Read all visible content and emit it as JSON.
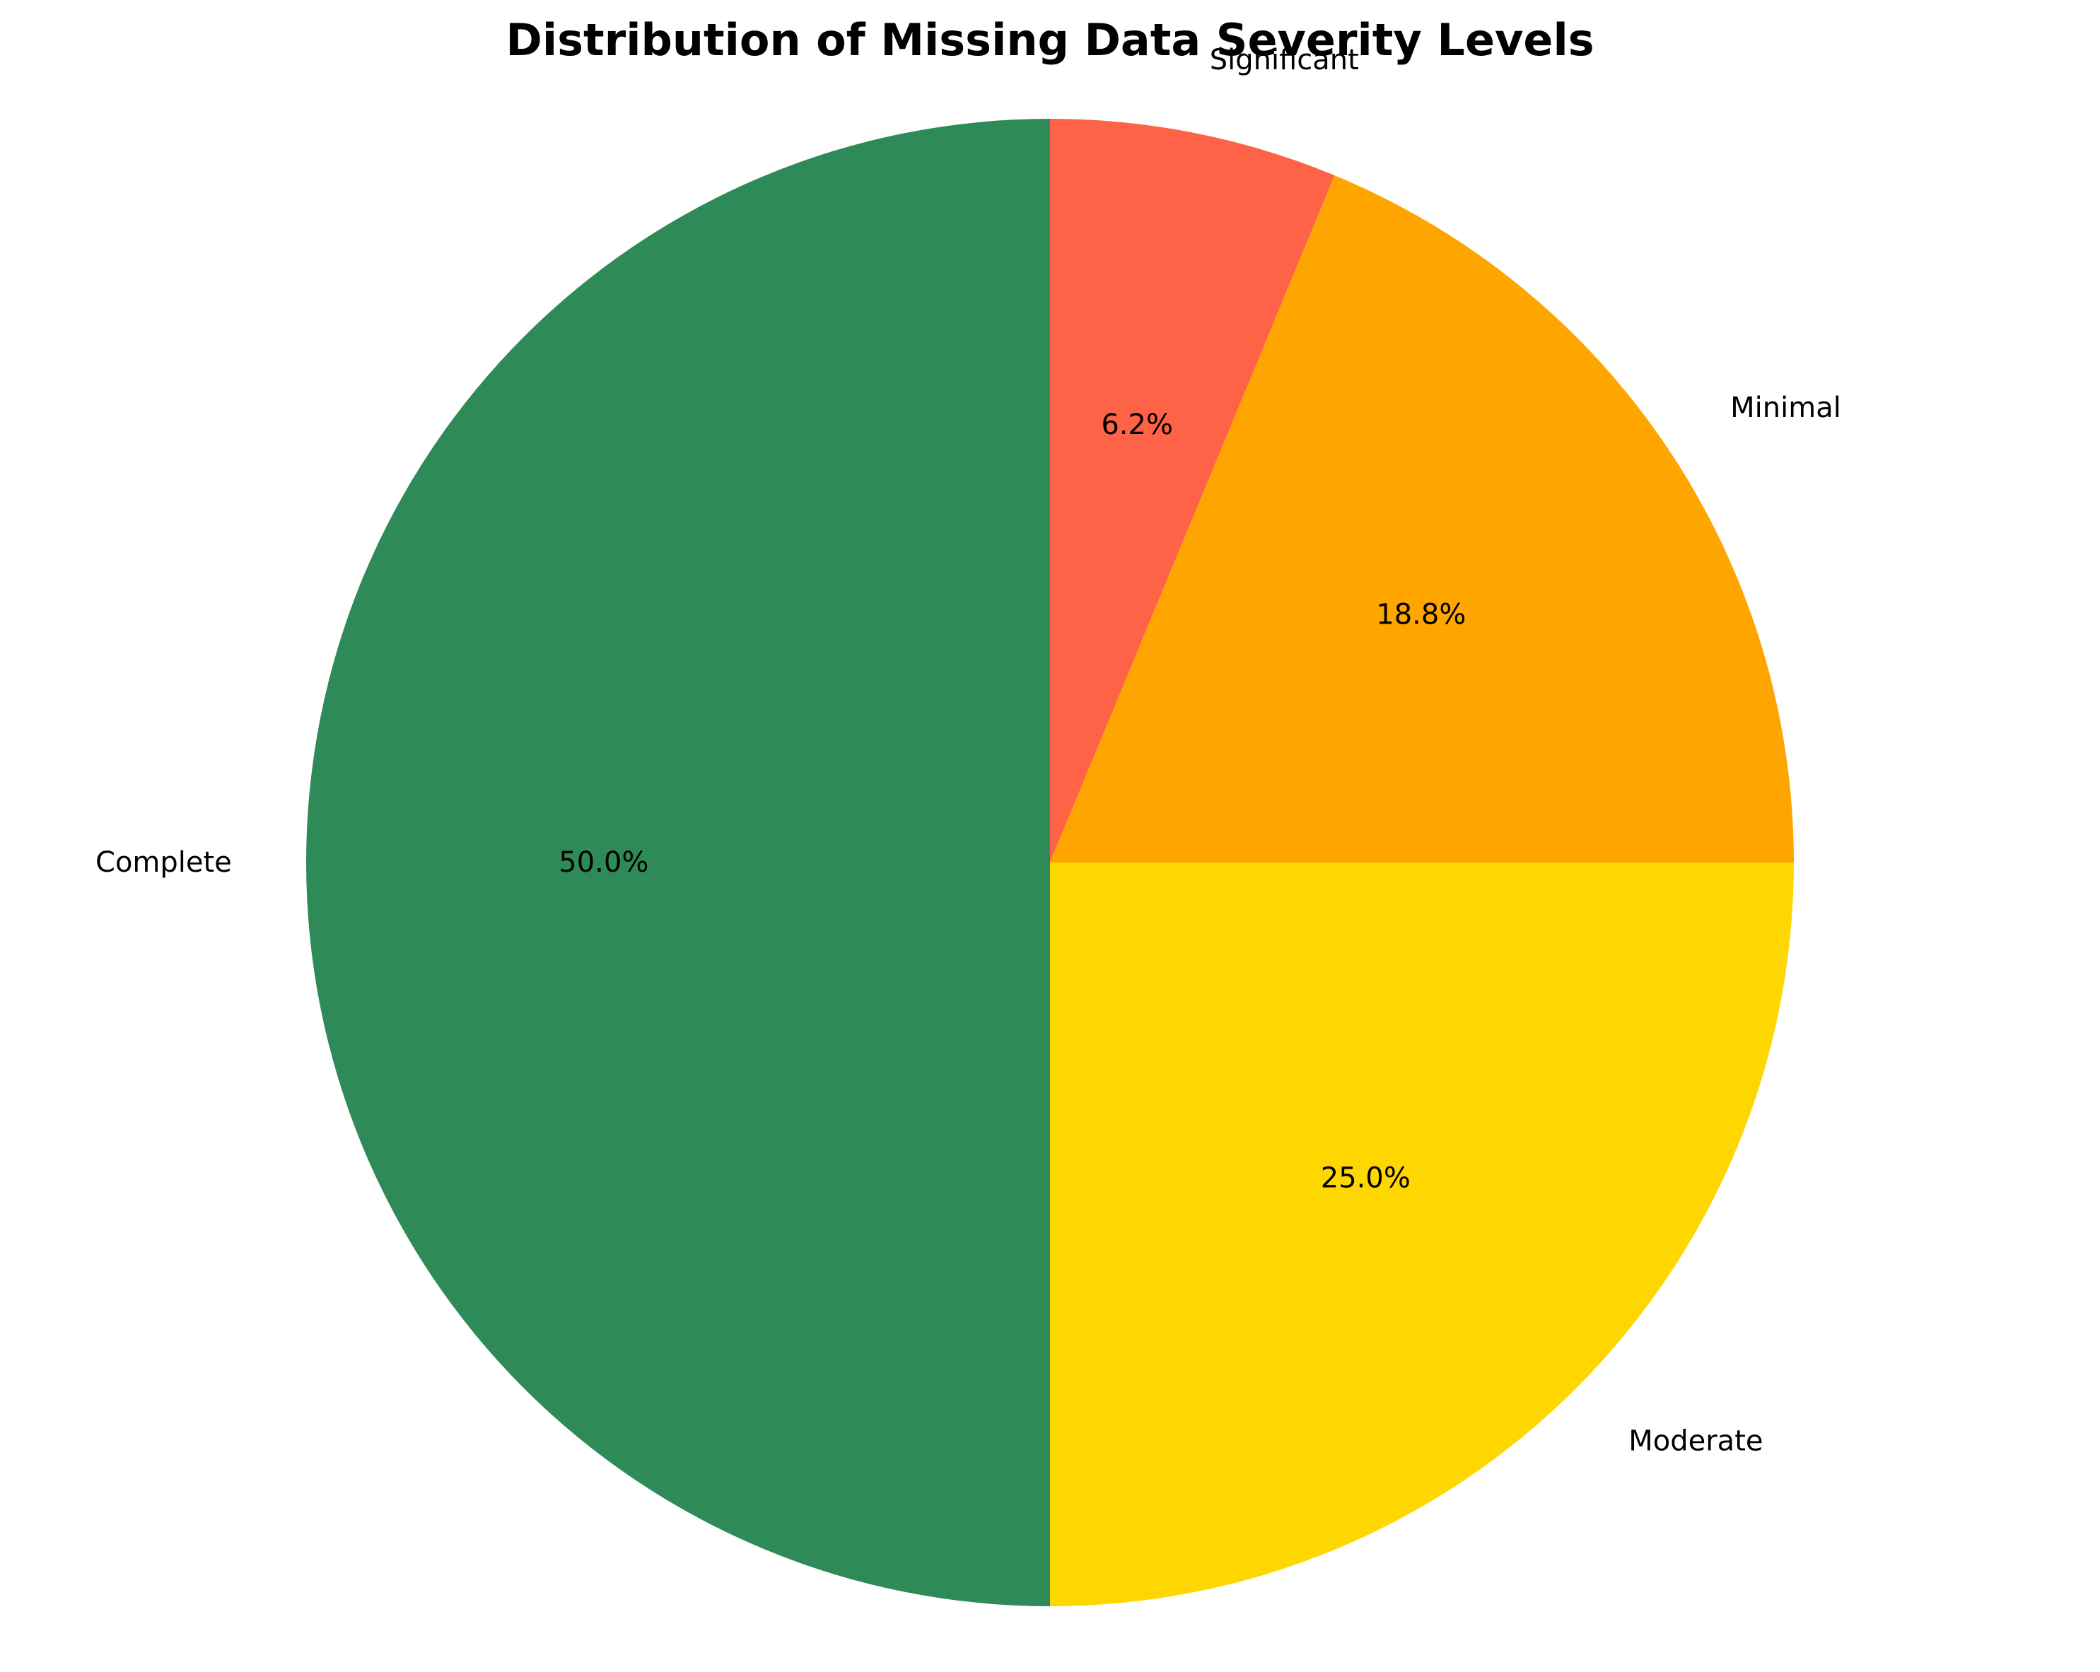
{
  "chart_data": {
    "type": "pie",
    "title": "Distribution of Missing Data Severity Levels",
    "categories": [
      "Significant",
      "Minimal",
      "Moderate",
      "Complete"
    ],
    "values": [
      6.25,
      18.75,
      25.0,
      50.0
    ],
    "percent_labels": [
      "6.2%",
      "18.8%",
      "25.0%",
      "50.0%"
    ],
    "colors": [
      "#FF6347",
      "#FFA500",
      "#FFD700",
      "#2E8B57"
    ],
    "start_angle_deg": 90,
    "direction": "clockwise"
  }
}
